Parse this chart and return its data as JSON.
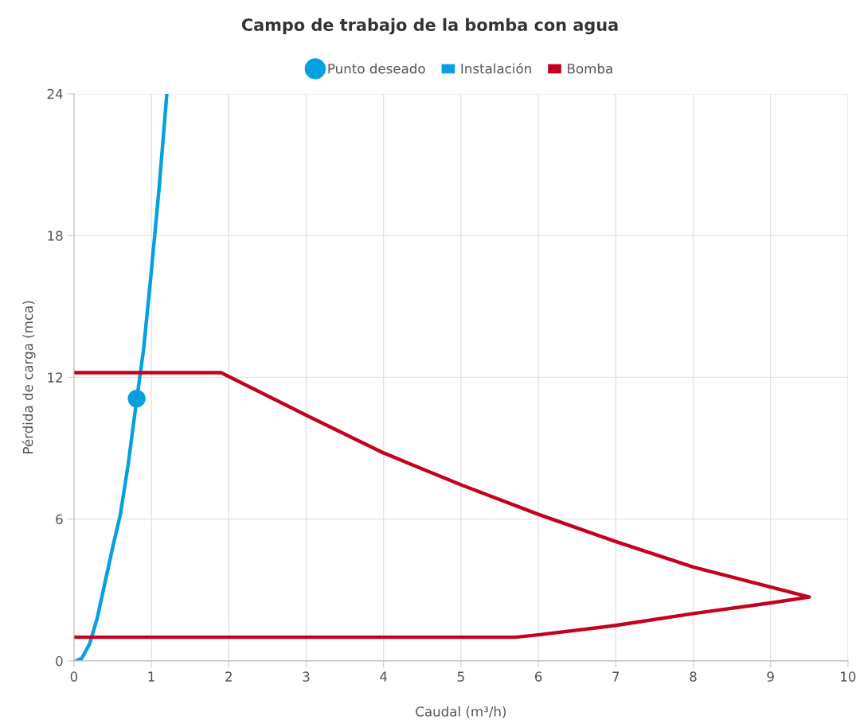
{
  "chart_data": {
    "type": "line",
    "title": "Campo de trabajo de la bomba con agua",
    "xlabel": "Caudal (m³/h)",
    "ylabel": "Pérdida de carga (mca)",
    "xlim": [
      0,
      10
    ],
    "xticks": [
      0,
      1,
      2,
      3,
      4,
      5,
      6,
      7,
      8,
      9,
      10
    ],
    "ylim": [
      0,
      24
    ],
    "yticks": [
      0,
      6,
      12,
      18,
      24
    ],
    "grid": true,
    "legend": "top",
    "series": [
      {
        "name": "Punto deseado",
        "type": "scatter",
        "marker": "circle",
        "color": "#069fdf",
        "x": [
          0.81
        ],
        "values": [
          11.1
        ]
      },
      {
        "name": "Instalación",
        "color": "#069fdf",
        "x": [
          0.03,
          0.1,
          0.2,
          0.3,
          0.4,
          0.5,
          0.6,
          0.7,
          0.8,
          0.9,
          1.0,
          1.1,
          1.2
        ],
        "values": [
          0,
          0.1,
          0.7,
          1.8,
          3.3,
          4.8,
          6.2,
          8.3,
          10.8,
          13.2,
          16.5,
          20.0,
          24
        ]
      },
      {
        "name": "Bomba",
        "color": "#c4001f",
        "x": [
          0,
          1.9,
          3,
          4,
          5,
          6,
          7,
          8,
          9.5,
          9,
          8,
          7,
          6,
          5.7,
          0
        ],
        "values": [
          12.2,
          12.2,
          10.4,
          8.8,
          7.45,
          6.2,
          5.05,
          3.97,
          2.7,
          2.45,
          2.0,
          1.5,
          1.1,
          1.0,
          1.0
        ]
      }
    ]
  }
}
